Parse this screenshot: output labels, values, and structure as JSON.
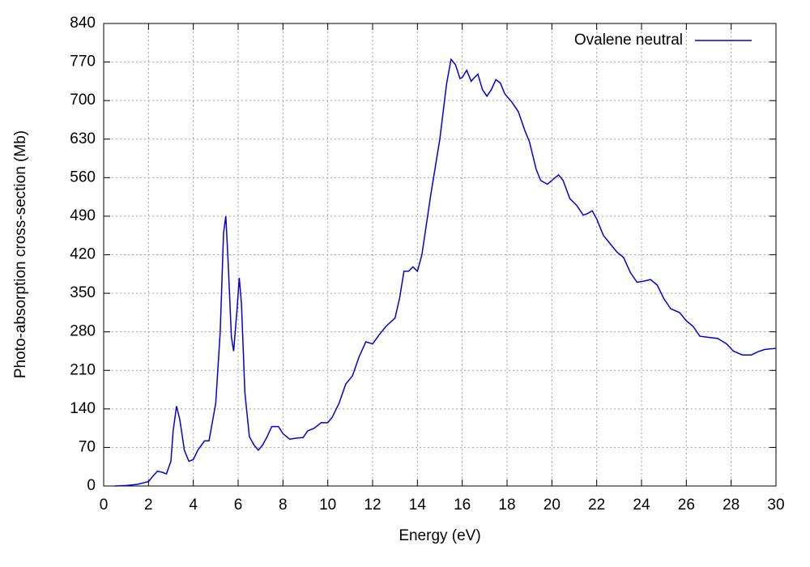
{
  "chart_data": {
    "type": "line",
    "xlabel": "Energy (eV)",
    "ylabel": "Photo-absorption cross-section (Mb)",
    "x": [
      0.5,
      1,
      1.5,
      2,
      2.2,
      2.4,
      2.6,
      2.8,
      3.0,
      3.1,
      3.25,
      3.4,
      3.6,
      3.8,
      4.0,
      4.2,
      4.5,
      4.7,
      5.0,
      5.2,
      5.35,
      5.45,
      5.55,
      5.7,
      5.8,
      5.95,
      6.05,
      6.15,
      6.3,
      6.5,
      6.7,
      6.9,
      7.1,
      7.3,
      7.5,
      7.8,
      8.0,
      8.3,
      8.6,
      8.9,
      9.1,
      9.4,
      9.7,
      10.0,
      10.2,
      10.5,
      10.8,
      11.1,
      11.4,
      11.7,
      12.0,
      12.3,
      12.6,
      13.0,
      13.2,
      13.4,
      13.6,
      13.8,
      14.0,
      14.2,
      14.6,
      15.0,
      15.3,
      15.5,
      15.7,
      15.9,
      16.0,
      16.2,
      16.4,
      16.5,
      16.7,
      16.9,
      17.1,
      17.3,
      17.5,
      17.7,
      17.9,
      18.2,
      18.5,
      18.8,
      19.0,
      19.3,
      19.5,
      19.8,
      20.0,
      20.3,
      20.5,
      20.8,
      21.1,
      21.4,
      21.6,
      21.8,
      22.0,
      22.3,
      22.6,
      22.9,
      23.2,
      23.5,
      23.8,
      24.1,
      24.4,
      24.7,
      25.0,
      25.3,
      25.7,
      26.0,
      26.3,
      26.6,
      27.0,
      27.4,
      27.8,
      28.1,
      28.5,
      28.9,
      29.2,
      29.5,
      30
    ],
    "series": [
      {
        "name": "Ovalene neutral",
        "color": "#0000e0",
        "values": [
          0,
          1,
          3,
          8,
          18,
          27,
          25,
          22,
          45,
          100,
          145,
          120,
          65,
          45,
          48,
          65,
          82,
          82,
          150,
          280,
          460,
          490,
          410,
          270,
          245,
          320,
          378,
          330,
          170,
          90,
          75,
          65,
          75,
          90,
          108,
          108,
          95,
          85,
          87,
          88,
          100,
          105,
          115,
          115,
          125,
          150,
          185,
          200,
          235,
          262,
          258,
          275,
          290,
          305,
          340,
          390,
          390,
          398,
          390,
          420,
          530,
          630,
          730,
          775,
          765,
          740,
          742,
          755,
          735,
          740,
          748,
          720,
          708,
          720,
          738,
          732,
          712,
          698,
          680,
          645,
          625,
          575,
          555,
          548,
          555,
          565,
          555,
          522,
          510,
          492,
          495,
          500,
          485,
          455,
          440,
          425,
          415,
          388,
          370,
          372,
          375,
          365,
          340,
          322,
          315,
          300,
          290,
          272,
          270,
          268,
          258,
          245,
          238,
          238,
          244,
          248,
          250
        ]
      }
    ],
    "xlim": [
      0,
      30
    ],
    "xticks": [
      0,
      2,
      4,
      6,
      8,
      10,
      12,
      14,
      16,
      18,
      20,
      22,
      24,
      26,
      28,
      30
    ],
    "ylim": [
      0,
      840
    ],
    "yticks": [
      0,
      70,
      140,
      210,
      280,
      350,
      420,
      490,
      560,
      630,
      700,
      770,
      840
    ],
    "grid": true,
    "legend": "top-right"
  }
}
